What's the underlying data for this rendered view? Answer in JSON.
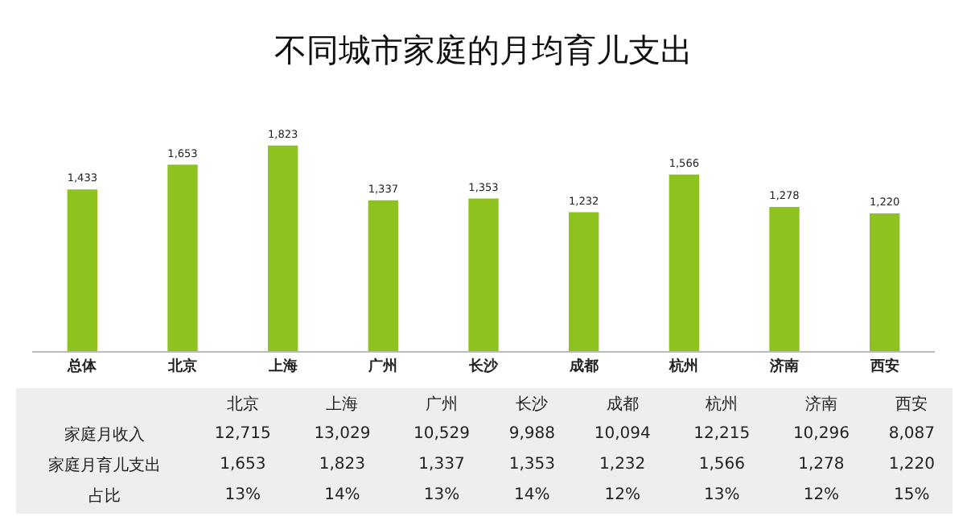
{
  "chart_data": [
    {
      "type": "bar",
      "title": "不同城市家庭的月均育儿支出",
      "categories": [
        "总体",
        "北京",
        "上海",
        "广州",
        "长沙",
        "成都",
        "杭州",
        "济南",
        "西安"
      ],
      "values": [
        1433,
        1653,
        1823,
        1337,
        1353,
        1232,
        1566,
        1278,
        1220
      ],
      "value_labels": [
        "1,433",
        "1,653",
        "1,823",
        "1,337",
        "1,353",
        "1,232",
        "1,566",
        "1,278",
        "1,220"
      ],
      "color": "#8dc21f",
      "grid": false,
      "legend": false,
      "tick_labels": "x"
    },
    {
      "type": "other",
      "categories": [
        "北京",
        "上海",
        "广州",
        "长沙",
        "成都",
        "杭州",
        "济南",
        "西安"
      ],
      "series": [
        {
          "name": "家庭月收入",
          "values": [
            12715,
            13029,
            10529,
            9988,
            10094,
            12215,
            10296,
            8087
          ],
          "value_labels": [
            "12,715",
            "13,029",
            "10,529",
            "9,988",
            "10,094",
            "12,215",
            "10,296",
            "8,087"
          ]
        },
        {
          "name": "家庭月育儿支出",
          "values": [
            1653,
            1823,
            1337,
            1353,
            1232,
            1566,
            1278,
            1220
          ],
          "value_labels": [
            "1,653",
            "1,823",
            "1,337",
            "1,353",
            "1,232",
            "1,566",
            "1,278",
            "1,220"
          ]
        },
        {
          "name": "占比",
          "values": [
            13,
            14,
            13,
            14,
            12,
            13,
            12,
            15
          ],
          "value_labels": [
            "13%",
            "14%",
            "13%",
            "14%",
            "12%",
            "13%",
            "12%",
            "15%"
          ]
        }
      ]
    }
  ]
}
